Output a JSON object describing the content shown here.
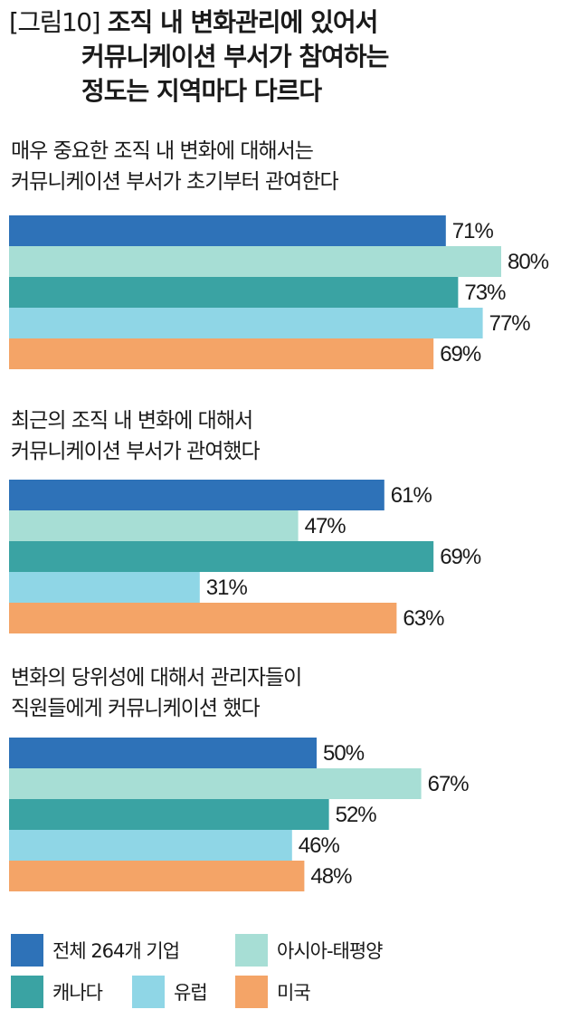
{
  "figure": {
    "tag": "[그림10]",
    "title_lines": [
      "조직 내 변화관리에 있어서",
      "커뮤니케이션 부서가 참여하는",
      "정도는 지역마다 다르다"
    ]
  },
  "chart_data": [
    {
      "type": "bar",
      "orientation": "horizontal",
      "title": "매우 중요한 조직 내 변화에 대해서는 커뮤니케이션 부서가 초기부터 관여한다",
      "title_lines": [
        "매우 중요한 조직 내 변화에 대해서는",
        "커뮤니케이션 부서가 초기부터 관여한다"
      ],
      "categories": [
        "전체 264개 기업",
        "아시아-태평양",
        "캐나다",
        "유럽",
        "미국"
      ],
      "values": [
        71,
        80,
        73,
        77,
        69
      ],
      "unit": "%"
    },
    {
      "type": "bar",
      "orientation": "horizontal",
      "title": "최근의 조직 내 변화에 대해서 커뮤니케이션 부서가 관여했다",
      "title_lines": [
        "최근의 조직 내 변화에 대해서",
        "커뮤니케이션 부서가 관여했다"
      ],
      "categories": [
        "전체 264개 기업",
        "아시아-태평양",
        "캐나다",
        "유럽",
        "미국"
      ],
      "values": [
        61,
        47,
        69,
        31,
        63
      ],
      "unit": "%"
    },
    {
      "type": "bar",
      "orientation": "horizontal",
      "title": "변화의 당위성에 대해서 관리자들이 직원들에게 커뮤니케이션 했다",
      "title_lines": [
        "변화의 당위성에 대해서 관리자들이",
        "직원들에게 커뮤니케이션 했다"
      ],
      "categories": [
        "전체 264개 기업",
        "아시아-태평양",
        "캐나다",
        "유럽",
        "미국"
      ],
      "values": [
        50,
        67,
        52,
        46,
        48
      ],
      "unit": "%"
    }
  ],
  "colors": [
    "#2e72b8",
    "#a7ded5",
    "#3aa3a3",
    "#8fd6e6",
    "#f4a467"
  ],
  "legend": [
    {
      "label": "전체 264개 기업",
      "color": "#2e72b8"
    },
    {
      "label": "아시아-태평양",
      "color": "#a7ded5"
    },
    {
      "label": "캐나다",
      "color": "#3aa3a3"
    },
    {
      "label": "유럽",
      "color": "#8fd6e6"
    },
    {
      "label": "미국",
      "color": "#f4a467"
    }
  ]
}
